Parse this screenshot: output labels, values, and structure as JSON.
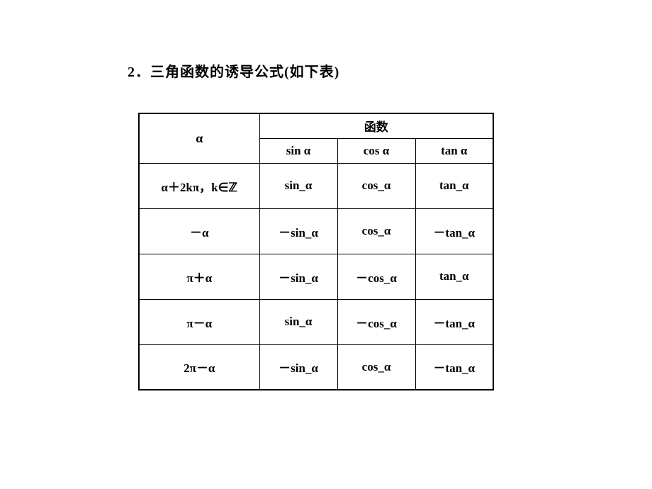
{
  "title": "2．三角函数的诱导公式(如下表)",
  "table": {
    "header": {
      "alpha": "α",
      "function_group": "函数",
      "sin": "sin α",
      "cos": "cos α",
      "tan": "tan α"
    },
    "rows": [
      {
        "alpha": "α＋2kπ，k∈ℤ",
        "sin": "sin_α",
        "cos": "cos_α",
        "tan": "tan_α"
      },
      {
        "alpha": "－α",
        "sin": "－sin_α",
        "cos": "cos_α",
        "tan": "－tan_α"
      },
      {
        "alpha": "π＋α",
        "sin": "－sin_α",
        "cos": "－cos_α",
        "tan": "tan_α"
      },
      {
        "alpha": "π－α",
        "sin": "sin_α",
        "cos": "－cos_α",
        "tan": "－tan_α"
      },
      {
        "alpha": "2π－α",
        "sin": "－sin_α",
        "cos": "cos_α",
        "tan": "－tan_α"
      }
    ]
  },
  "styling": {
    "font_family": "SimSun",
    "title_fontsize": 20,
    "cell_fontsize": 17,
    "border_color": "#000000",
    "background_color": "#ffffff",
    "text_color": "#000000",
    "col_widths": {
      "alpha": 170,
      "func": 110
    },
    "row_heights": {
      "header": 35,
      "body": 64
    }
  }
}
